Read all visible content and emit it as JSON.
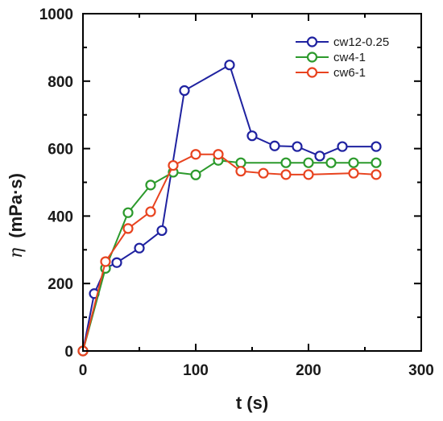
{
  "chart_data": {
    "type": "line",
    "title": "",
    "xlabel": "t (s)",
    "ylabel_symbol": "η",
    "ylabel_unit": "(mPa·s)",
    "xlim": [
      0,
      300
    ],
    "ylim": [
      0,
      1000
    ],
    "xticks": [
      0,
      100,
      200,
      300
    ],
    "yticks": [
      0,
      200,
      400,
      600,
      800,
      1000
    ],
    "grid": false,
    "legend_position": "top-right",
    "series": [
      {
        "name": "cw12-0.25",
        "color": "#1f22a0",
        "x": [
          0,
          10,
          20,
          30,
          50,
          70,
          90,
          130,
          150,
          170,
          190,
          210,
          230,
          260
        ],
        "y": [
          0,
          170,
          245,
          262,
          305,
          357,
          772,
          848,
          638,
          608,
          606,
          578,
          606,
          606
        ]
      },
      {
        "name": "cw4-1",
        "color": "#2c9a2c",
        "x": [
          0,
          20,
          40,
          60,
          80,
          100,
          120,
          140,
          180,
          200,
          220,
          240,
          260
        ],
        "y": [
          0,
          245,
          410,
          492,
          530,
          522,
          565,
          558,
          558,
          558,
          558,
          558,
          558
        ]
      },
      {
        "name": "cw6-1",
        "color": "#e8431f",
        "x": [
          0,
          20,
          40,
          60,
          80,
          100,
          120,
          140,
          160,
          180,
          200,
          240,
          260
        ],
        "y": [
          0,
          265,
          363,
          413,
          550,
          583,
          583,
          533,
          527,
          523,
          523,
          527,
          523
        ]
      }
    ]
  }
}
